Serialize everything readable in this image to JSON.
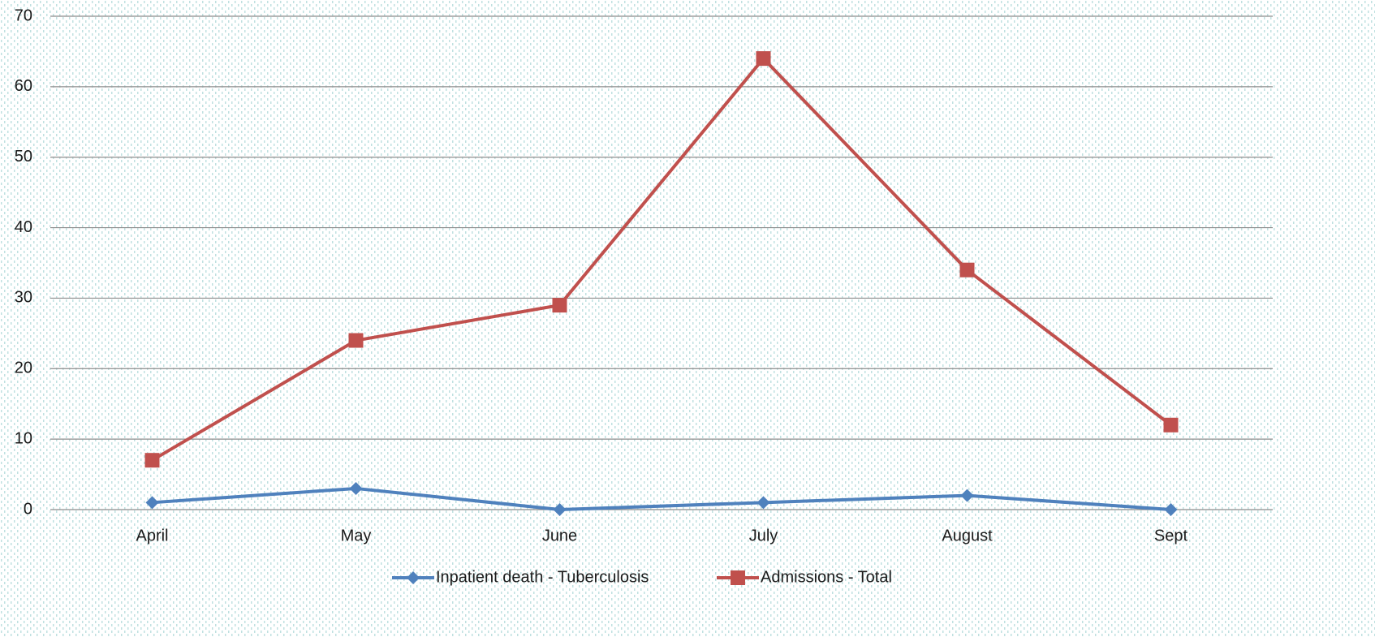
{
  "chart_data": {
    "type": "line",
    "categories": [
      "April",
      "May",
      "June",
      "July",
      "August",
      "Sept"
    ],
    "series": [
      {
        "name": "Inpatient death - Tuberculosis",
        "color": "#4f81bd",
        "marker": "diamond",
        "values": [
          1,
          3,
          0,
          1,
          2,
          0
        ]
      },
      {
        "name": "Admissions - Total",
        "color": "#c0504d",
        "marker": "square",
        "values": [
          7,
          24,
          29,
          64,
          34,
          12
        ]
      }
    ],
    "ylim": [
      0,
      70
    ],
    "yticks": [
      0,
      10,
      20,
      30,
      40,
      50,
      60,
      70
    ],
    "grid": true,
    "legend": "bottom"
  }
}
